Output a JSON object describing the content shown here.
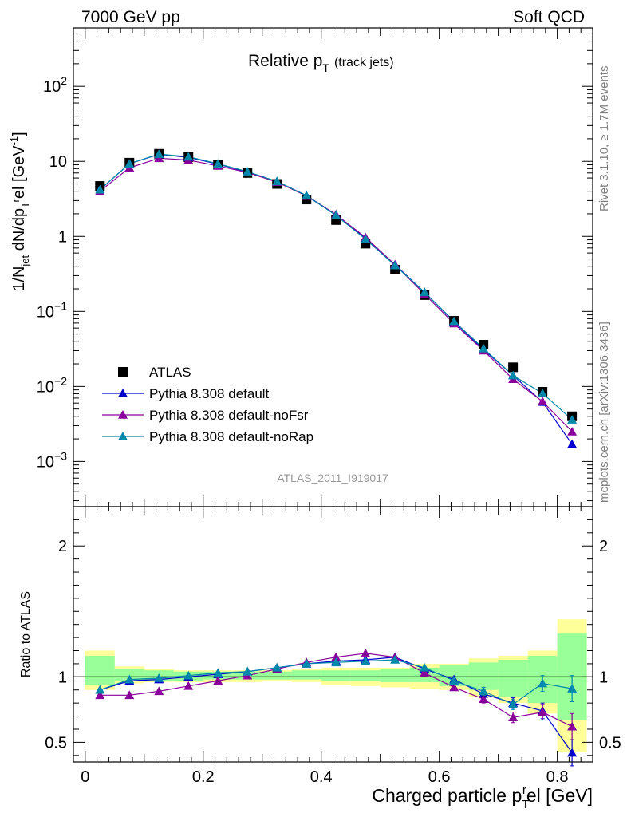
{
  "header": {
    "left": "7000 GeV pp",
    "right": "Soft QCD"
  },
  "side_text": {
    "rivet": "Rivet 3.1.10, ≥ 1.7M events",
    "mcplots": "mcplots.cern.ch [arXiv:1306.3436]"
  },
  "chart_data": [
    {
      "type": "scatter",
      "panel": "main",
      "title": "Relative p_T (track jets)",
      "title_main": "Relative p",
      "title_sub": "T",
      "title_note": "(track jets)",
      "watermark": "ATLAS_2011_I919017",
      "ylabel": "1/N_jet dN/dp_T^rel [GeV^-1]",
      "yscale": "log",
      "ylim": [
        0.00025,
        600
      ],
      "xlim": [
        -0.02,
        0.86
      ],
      "x_ticks": [
        0,
        0.2,
        0.4,
        0.6,
        0.8
      ],
      "y_tick_labels": [
        "10^-3",
        "10^-2",
        "10^-1",
        "1",
        "10",
        "10^2"
      ],
      "legend_position": "lower-left",
      "x": [
        0.025,
        0.075,
        0.125,
        0.175,
        0.225,
        0.275,
        0.325,
        0.375,
        0.425,
        0.475,
        0.525,
        0.575,
        0.625,
        0.675,
        0.725,
        0.775,
        0.825
      ],
      "series": [
        {
          "name": "ATLAS",
          "marker": "square",
          "color": "#000000",
          "values": [
            4.7,
            9.6,
            12.6,
            11.4,
            9.0,
            7.0,
            5.0,
            3.1,
            1.65,
            0.8,
            0.36,
            0.165,
            0.075,
            0.036,
            0.018,
            0.0085,
            0.004
          ]
        },
        {
          "name": "Pythia 8.308 default",
          "marker": "triangle",
          "color": "#0000cc",
          "values": [
            4.2,
            9.3,
            12.4,
            11.3,
            9.2,
            7.2,
            5.4,
            3.5,
            1.95,
            0.95,
            0.42,
            0.18,
            0.073,
            0.031,
            0.014,
            0.0062,
            0.0017
          ]
        },
        {
          "name": "Pythia 8.308 default-noFsr",
          "marker": "triangle",
          "color": "#880099",
          "values": [
            4.0,
            8.2,
            11.0,
            10.4,
            8.7,
            7.1,
            5.3,
            3.45,
            1.95,
            0.97,
            0.42,
            0.17,
            0.069,
            0.03,
            0.0125,
            0.0063,
            0.0025
          ]
        },
        {
          "name": "Pythia 8.308 default-noRap",
          "marker": "triangle",
          "color": "#0088aa",
          "values": [
            4.2,
            9.3,
            12.5,
            11.5,
            9.3,
            7.3,
            5.4,
            3.5,
            1.9,
            0.92,
            0.41,
            0.18,
            0.074,
            0.032,
            0.014,
            0.0081,
            0.0036
          ]
        }
      ]
    },
    {
      "type": "line",
      "panel": "ratio",
      "ylabel": "Ratio to ATLAS",
      "xlabel": "Charged particle p_T^rel [GeV]",
      "xlabel_main": "Charged particle p",
      "xlabel_sub": "T",
      "xlabel_sup": "r",
      "xlabel_tail": "el [GeV]",
      "ylim": [
        0.35,
        2.3
      ],
      "xlim": [
        -0.02,
        0.86
      ],
      "y_tick_labels": [
        "0.5",
        "1",
        "2"
      ],
      "x_tick_labels": [
        "0",
        "0.2",
        "0.4",
        "0.6",
        "0.8"
      ],
      "x": [
        0.025,
        0.075,
        0.125,
        0.175,
        0.225,
        0.275,
        0.325,
        0.375,
        0.425,
        0.475,
        0.525,
        0.575,
        0.625,
        0.675,
        0.725,
        0.775,
        0.825
      ],
      "bin_edges": [
        0,
        0.05,
        0.1,
        0.15,
        0.2,
        0.25,
        0.3,
        0.35,
        0.4,
        0.45,
        0.5,
        0.55,
        0.6,
        0.65,
        0.7,
        0.75,
        0.8,
        0.85
      ],
      "band_stat": {
        "color": "#99ff99",
        "lo": [
          0.94,
          0.97,
          0.97,
          0.97,
          0.98,
          0.98,
          0.98,
          0.98,
          0.97,
          0.97,
          0.96,
          0.96,
          0.93,
          0.9,
          0.85,
          0.8,
          0.67
        ],
        "hi": [
          1.16,
          1.06,
          1.05,
          1.04,
          1.04,
          1.04,
          1.04,
          1.05,
          1.05,
          1.05,
          1.06,
          1.07,
          1.09,
          1.11,
          1.13,
          1.16,
          1.33
        ]
      },
      "band_sys": {
        "color": "#ffff99",
        "lo": [
          0.9,
          0.95,
          0.96,
          0.96,
          0.96,
          0.96,
          0.97,
          0.96,
          0.94,
          0.93,
          0.92,
          0.91,
          0.9,
          0.85,
          0.8,
          0.72,
          0.43
        ],
        "hi": [
          1.2,
          1.08,
          1.06,
          1.05,
          1.05,
          1.05,
          1.05,
          1.06,
          1.07,
          1.07,
          1.07,
          1.1,
          1.1,
          1.14,
          1.16,
          1.2,
          1.44
        ]
      },
      "series": [
        {
          "name": "Pythia 8.308 default",
          "color": "#0000cc",
          "values": [
            0.9,
            0.97,
            0.98,
            1.0,
            1.02,
            1.04,
            1.07,
            1.1,
            1.12,
            1.13,
            1.15,
            1.06,
            0.98,
            0.87,
            0.8,
            0.74,
            0.42
          ],
          "err": [
            0,
            0,
            0,
            0,
            0,
            0,
            0,
            0,
            0,
            0,
            0,
            0,
            0.02,
            0.03,
            0.04,
            0.06,
            0.1
          ]
        },
        {
          "name": "Pythia 8.308 default-noFsr",
          "color": "#880099",
          "values": [
            0.86,
            0.86,
            0.89,
            0.93,
            0.97,
            1.01,
            1.06,
            1.11,
            1.15,
            1.18,
            1.15,
            1.03,
            0.92,
            0.83,
            0.69,
            0.73,
            0.62
          ],
          "err": [
            0,
            0,
            0,
            0,
            0,
            0,
            0,
            0,
            0,
            0,
            0,
            0,
            0.02,
            0.03,
            0.04,
            0.06,
            0.1
          ]
        },
        {
          "name": "Pythia 8.308 default-noRap",
          "color": "#0088aa",
          "values": [
            0.9,
            0.98,
            0.99,
            1.01,
            1.03,
            1.04,
            1.07,
            1.1,
            1.11,
            1.12,
            1.13,
            1.07,
            0.97,
            0.89,
            0.79,
            0.95,
            0.91
          ],
          "err": [
            0,
            0,
            0,
            0,
            0,
            0,
            0,
            0,
            0,
            0,
            0,
            0,
            0.02,
            0.03,
            0.04,
            0.06,
            0.1
          ]
        }
      ]
    }
  ]
}
